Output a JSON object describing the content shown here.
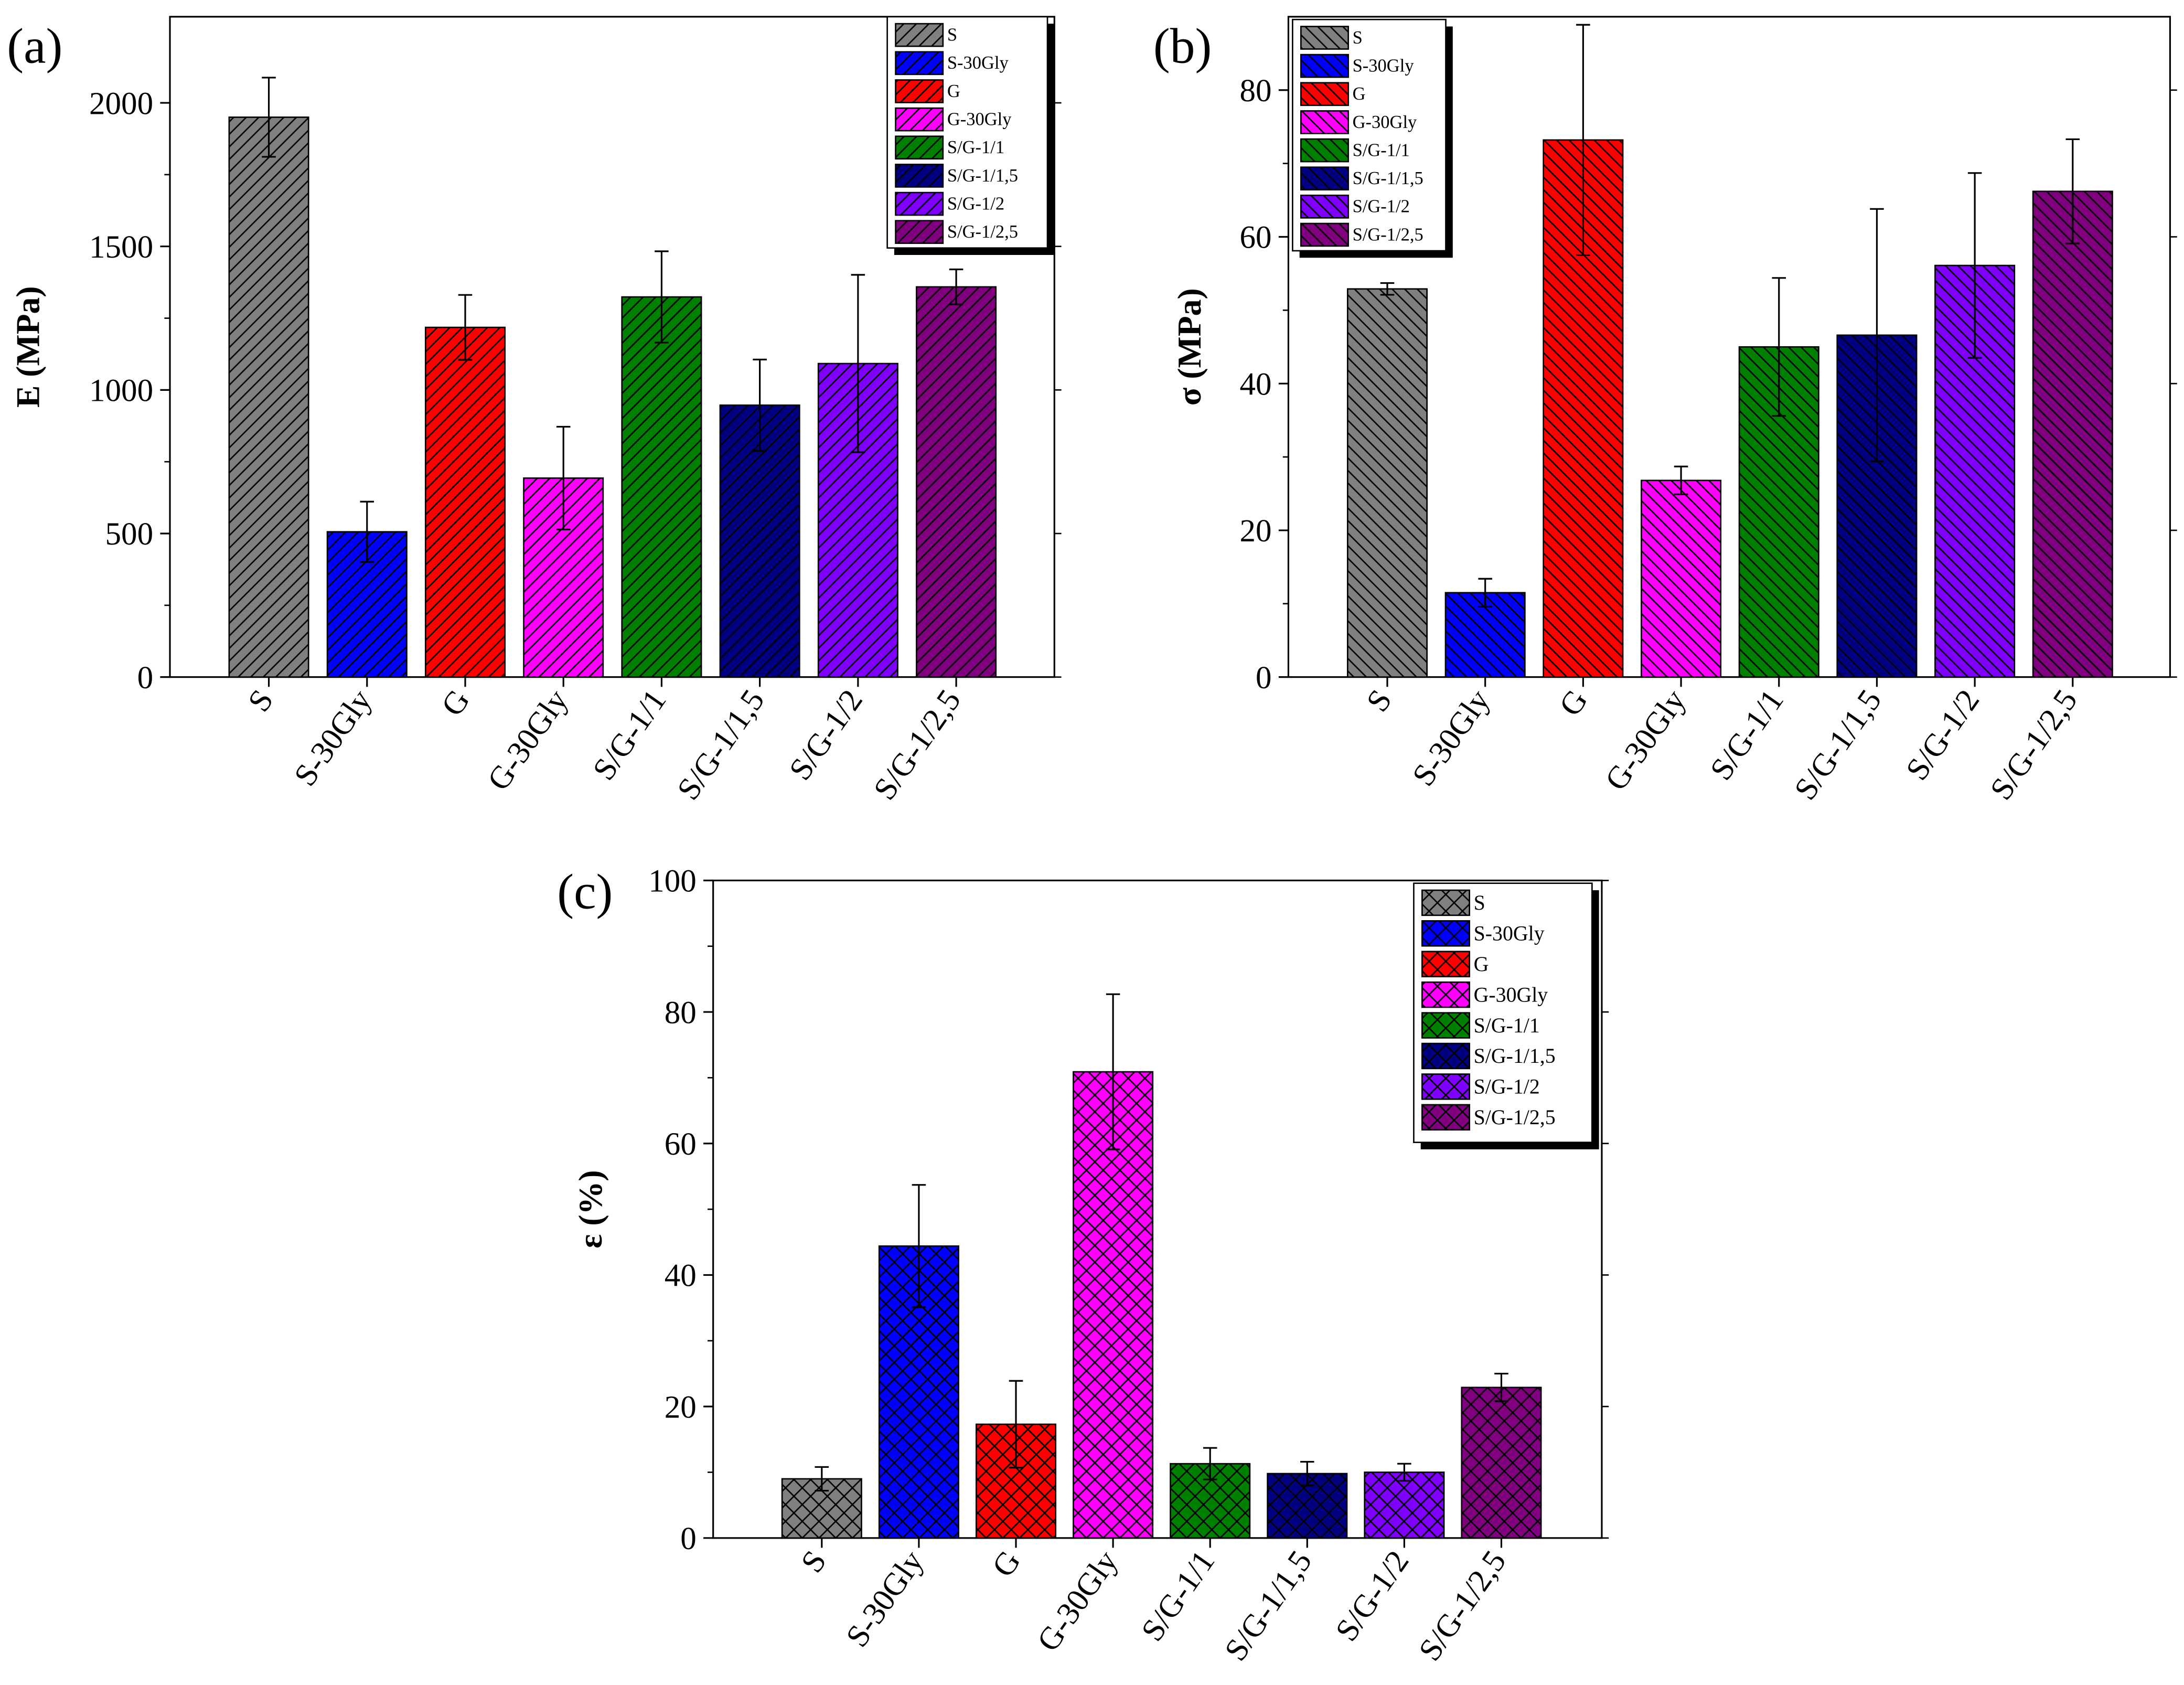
{
  "categories": [
    "S",
    "S-30Gly",
    "G",
    "G-30Gly",
    "S/G-1/1",
    "S/G-1/1,5",
    "S/G-1/2",
    "S/G-1/2,5"
  ],
  "colors": [
    "#808080",
    "#0000ff",
    "#ff0000",
    "#ff00ff",
    "#008000",
    "#000080",
    "#8000ff",
    "#800080"
  ],
  "chart_data": [
    {
      "type": "bar",
      "panel_label": "(a)",
      "ylabel": "E (MPa)",
      "xlabel": "",
      "ylim": [
        0,
        2300
      ],
      "yticks": [
        0,
        500,
        1000,
        1500,
        2000
      ],
      "pattern": "forward-diagonal hatch",
      "legend": "top-right",
      "series": [
        {
          "values": [
            1950,
            506,
            1218,
            693,
            1324,
            947,
            1092,
            1359
          ],
          "errors": [
            138,
            105,
            113,
            179,
            159,
            159,
            309,
            61
          ]
        }
      ]
    },
    {
      "type": "bar",
      "panel_label": "(b)",
      "ylabel": "σ (MPa)",
      "xlabel": "",
      "ylim": [
        0,
        90
      ],
      "yticks": [
        0,
        20,
        40,
        60,
        80
      ],
      "pattern": "backward-diagonal hatch",
      "legend": "top-left",
      "series": [
        {
          "values": [
            52.9,
            11.5,
            73.2,
            26.8,
            45.0,
            46.6,
            56.1,
            66.2
          ],
          "errors": [
            0.8,
            1.9,
            15.7,
            1.9,
            9.4,
            17.2,
            12.6,
            7.1
          ]
        }
      ]
    },
    {
      "type": "bar",
      "panel_label": "(c)",
      "ylabel": "ε (%)",
      "xlabel": "",
      "ylim": [
        0,
        100
      ],
      "yticks": [
        0,
        20,
        40,
        60,
        80,
        100
      ],
      "pattern": "cross hatch",
      "legend": "top-right",
      "series": [
        {
          "values": [
            9.0,
            44.4,
            17.3,
            70.9,
            11.3,
            9.8,
            10.0,
            22.9
          ],
          "errors": [
            1.8,
            9.3,
            6.6,
            11.8,
            2.4,
            1.8,
            1.3,
            2.1
          ]
        }
      ]
    }
  ]
}
